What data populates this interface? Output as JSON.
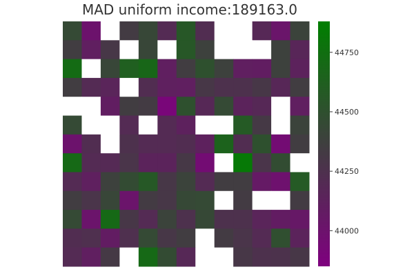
{
  "chart_data": {
    "type": "heatmap",
    "title": "MAD uniform income:189163.0",
    "xlabel": "",
    "ylabel": "",
    "rows": 13,
    "cols": 13,
    "colorbar": {
      "min": 43850,
      "max": 44880,
      "ticks": [
        44750,
        44500,
        44250,
        44000
      ],
      "tick_labels": [
        "44750",
        "44500",
        "44250",
        "44000"
      ],
      "colors": [
        "#7f007f",
        "#3f3f3f",
        "#007f00"
      ]
    },
    "empty_color": "#ffffff",
    "values": [
      [
        44450,
        44000,
        null,
        44330,
        44430,
        44200,
        44560,
        44220,
        null,
        null,
        44180,
        44020,
        44400
      ],
      [
        44350,
        44100,
        44300,
        null,
        44420,
        null,
        44560,
        44380,
        null,
        null,
        null,
        44380,
        44160
      ],
      [
        44720,
        null,
        44420,
        44620,
        44680,
        44100,
        44350,
        44500,
        44380,
        44100,
        44090,
        44380,
        44130
      ],
      [
        44350,
        44200,
        44150,
        null,
        44220,
        44110,
        44100,
        44300,
        44250,
        44250,
        44300,
        44170,
        44350
      ],
      [
        null,
        null,
        44090,
        44350,
        44330,
        43900,
        44500,
        44180,
        44450,
        44140,
        44180,
        null,
        44100
      ],
      [
        44450,
        null,
        null,
        44200,
        null,
        44200,
        44120,
        null,
        null,
        44580,
        44320,
        null,
        44400
      ],
      [
        44000,
        44220,
        null,
        44250,
        44200,
        44200,
        44220,
        44120,
        44650,
        44220,
        44500,
        43950,
        44350
      ],
      [
        44700,
        44200,
        44190,
        44280,
        44140,
        44140,
        44310,
        43950,
        null,
        44830,
        44280,
        44470,
        null
      ],
      [
        44200,
        44110,
        44380,
        44460,
        44570,
        44300,
        44400,
        44200,
        44350,
        44350,
        44060,
        43990,
        44580
      ],
      [
        44350,
        44280,
        44420,
        44010,
        44330,
        44300,
        44440,
        44450,
        null,
        44330,
        null,
        null,
        44330
      ],
      [
        44450,
        44010,
        44700,
        44300,
        44200,
        44400,
        44250,
        44440,
        44250,
        44250,
        44150,
        44080,
        44050
      ],
      [
        44220,
        44240,
        44080,
        44240,
        44450,
        44300,
        44350,
        null,
        44330,
        44280,
        44200,
        44490,
        44140
      ],
      [
        44200,
        44100,
        44320,
        null,
        44700,
        44460,
        44180,
        null,
        null,
        44300,
        44250,
        44260,
        44300
      ]
    ]
  }
}
